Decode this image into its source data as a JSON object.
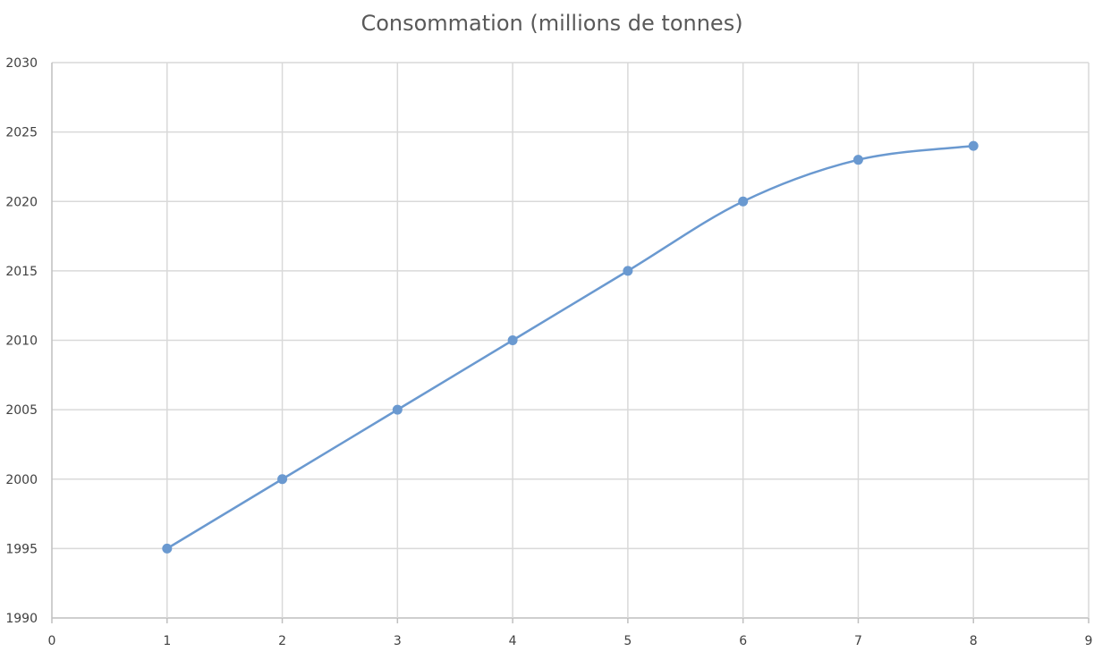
{
  "chart_data": {
    "type": "scatter",
    "title": "Consommation (millions de tonnes)",
    "xlabel": "",
    "ylabel": "",
    "xlim": [
      0,
      9
    ],
    "ylim": [
      1990,
      2030
    ],
    "x_ticks": [
      0,
      1,
      2,
      3,
      4,
      5,
      6,
      7,
      8,
      9
    ],
    "y_ticks": [
      1990,
      1995,
      2000,
      2005,
      2010,
      2015,
      2020,
      2025,
      2030
    ],
    "grid": true,
    "legend": "none",
    "series": [
      {
        "color": "#6a99d0",
        "marker": "circle",
        "line": "smooth",
        "x": [
          1,
          2,
          3,
          4,
          5,
          6,
          7,
          8
        ],
        "y": [
          1995,
          2000,
          2005,
          2010,
          2015,
          2020,
          2023,
          2024
        ]
      }
    ]
  }
}
